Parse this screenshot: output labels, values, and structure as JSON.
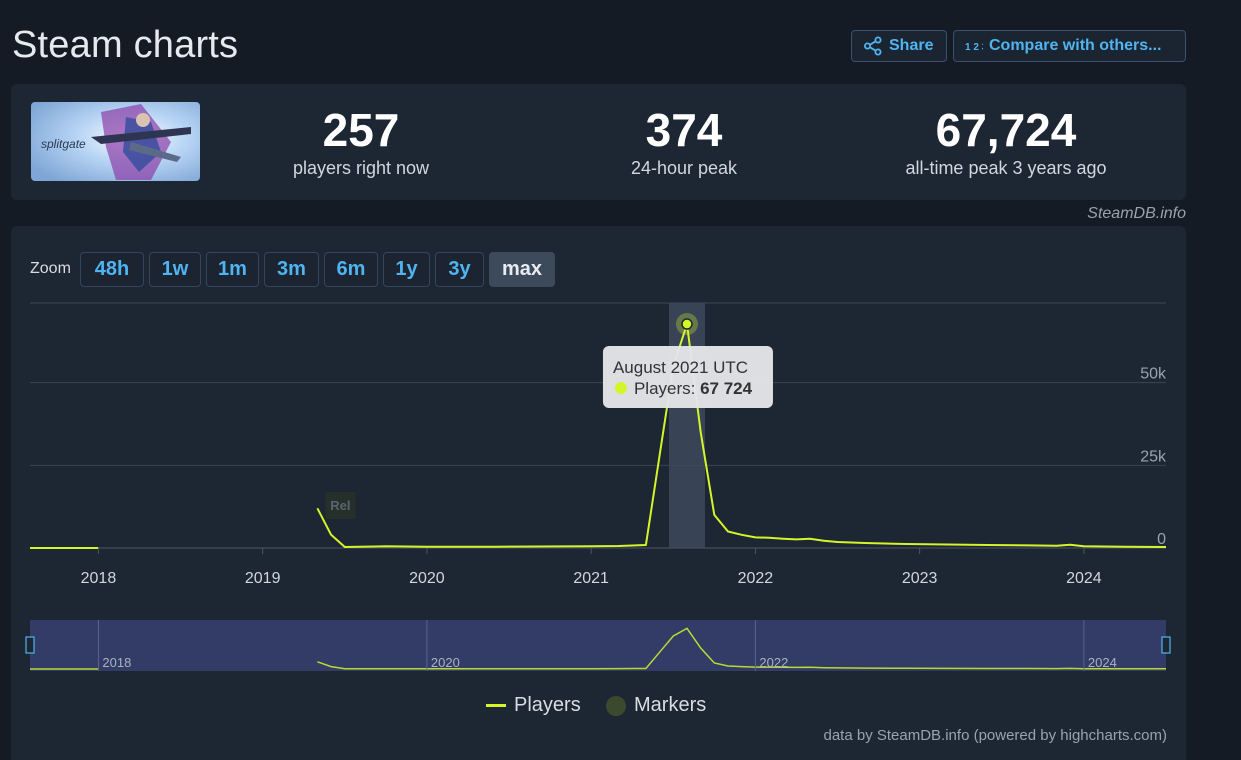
{
  "header": {
    "title": "Steam charts",
    "share_label": "Share",
    "compare_label": "Compare with others...",
    "compare_icon_text": "1 2 3"
  },
  "game": {
    "logo_text": "splitgate"
  },
  "stats": {
    "current": {
      "value": "257",
      "label": "players right now"
    },
    "peak24": {
      "value": "374",
      "label": "24-hour peak"
    },
    "alltime": {
      "value": "67,724",
      "label": "all-time peak 3 years ago"
    }
  },
  "credit_top": "SteamDB.info",
  "zoom": {
    "label": "Zoom",
    "buttons": [
      "48h",
      "1w",
      "1m",
      "3m",
      "6m",
      "1y",
      "3y",
      "max"
    ],
    "active": "max"
  },
  "tooltip": {
    "date": "August 2021 UTC",
    "series": "Players",
    "value": "67 724"
  },
  "marker_label": "Rel",
  "legend": {
    "players": "Players",
    "markers": "Markers"
  },
  "credit_bottom": "data by SteamDB.info (powered by highcharts.com)",
  "colors": {
    "line": "#d4f52a",
    "background": "#151b24",
    "panel": "#1d2633",
    "accent": "#4fb4f0",
    "navigator": "#3a4478"
  },
  "chart_data": {
    "type": "line",
    "series": [
      {
        "name": "Players",
        "x": [
          "2017-08",
          "2017-10",
          "2017-12",
          "2018-01",
          "2019-05",
          "2019-06",
          "2019-07",
          "2019-10",
          "2020-01",
          "2020-06",
          "2021-01",
          "2021-03",
          "2021-05",
          "2021-06",
          "2021-07",
          "2021-08",
          "2021-09",
          "2021-10",
          "2021-11",
          "2021-12",
          "2022-01",
          "2022-02",
          "2022-03",
          "2022-04",
          "2022-05",
          "2022-06",
          "2022-07",
          "2022-09",
          "2022-12",
          "2023-06",
          "2023-09",
          "2023-11",
          "2023-12",
          "2024-01",
          "2024-04",
          "2024-07"
        ],
        "values": [
          0,
          0,
          0,
          0,
          12000,
          4000,
          300,
          500,
          400,
          400,
          500,
          600,
          900,
          28000,
          55000,
          67724,
          35000,
          10000,
          5000,
          4000,
          3200,
          3100,
          2800,
          2600,
          2800,
          2200,
          1800,
          1500,
          1200,
          900,
          800,
          700,
          1000,
          500,
          400,
          300
        ],
        "gap_after_index": 3
      }
    ],
    "xlabels": [
      "2018",
      "2019",
      "2020",
      "2021",
      "2022",
      "2023",
      "2024"
    ],
    "yticks": [
      "0",
      "25k",
      "50k"
    ],
    "ylim": [
      0,
      75000
    ],
    "xlim": [
      "2017-08",
      "2024-07"
    ],
    "highlight": "2021-08",
    "marker": {
      "x": "2019-05",
      "label": "Rel"
    },
    "navigator_labels": [
      "2018",
      "2020",
      "2022",
      "2024"
    ],
    "grid": true
  }
}
